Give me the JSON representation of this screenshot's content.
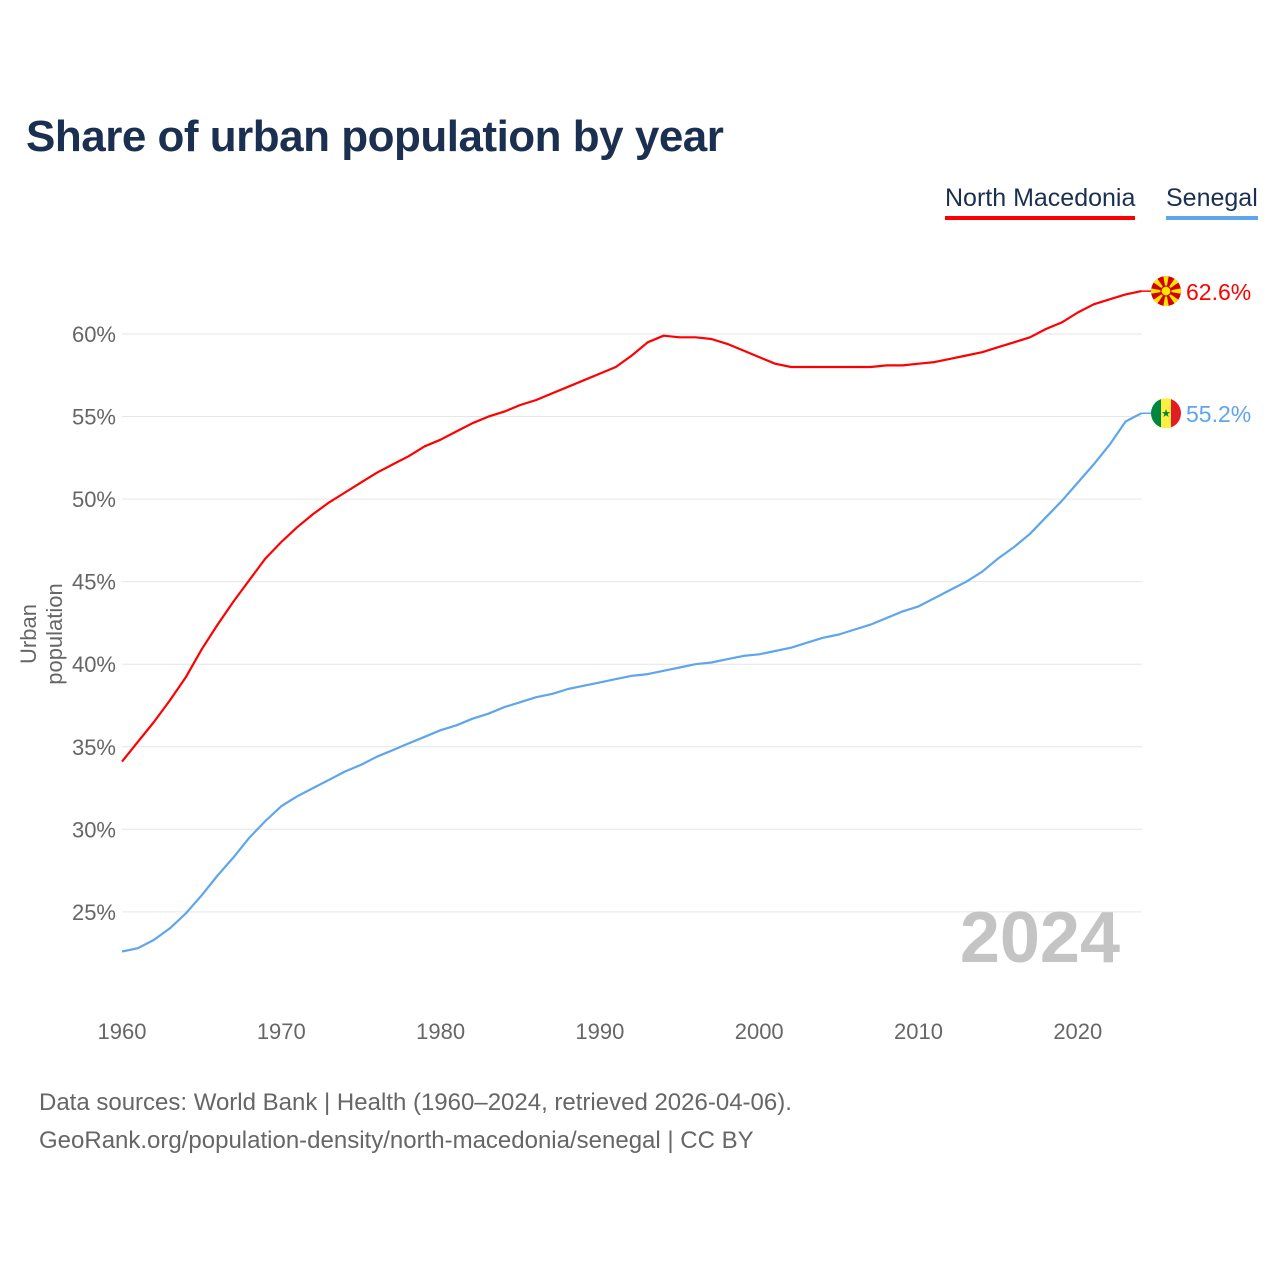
{
  "title": "Share of urban population by year",
  "legend": [
    {
      "name": "North Macedonia",
      "color": "#ff0000"
    },
    {
      "name": "Senegal",
      "color": "#5fa5ec"
    }
  ],
  "footer": {
    "line1": "Data sources: World Bank | Health (1960–2024, retrieved 2026-04-06).",
    "line2": "GeoRank.org/population-density/north-macedonia/senegal | CC BY"
  },
  "chart_data": {
    "type": "line",
    "title": "Share of urban population by year",
    "xlabel": "",
    "ylabel": "Urban population",
    "year_watermark": "2024",
    "x_start": 1960,
    "x_end": 2024,
    "xticks": [
      1960,
      1970,
      1980,
      1990,
      2000,
      2010,
      2020
    ],
    "yticks": [
      25,
      30,
      35,
      40,
      45,
      50,
      55,
      60
    ],
    "ytick_labels": [
      "25%",
      "30%",
      "35%",
      "40%",
      "45%",
      "50%",
      "55%",
      "60%"
    ],
    "grid": true,
    "legend_position": "top-right",
    "series": [
      {
        "name": "North Macedonia",
        "color": "#ff0000",
        "end_label": "62.6%",
        "flag": "north-macedonia-flag",
        "values": [
          34.1,
          35.3,
          36.5,
          37.8,
          39.2,
          40.9,
          42.4,
          43.8,
          45.1,
          46.4,
          47.4,
          48.3,
          49.1,
          49.8,
          50.4,
          51.0,
          51.6,
          52.1,
          52.6,
          53.2,
          53.6,
          54.1,
          54.6,
          55.0,
          55.3,
          55.7,
          56.0,
          56.4,
          56.8,
          57.2,
          57.6,
          58.0,
          58.7,
          59.5,
          59.9,
          59.8,
          59.8,
          59.7,
          59.4,
          59.0,
          58.6,
          58.2,
          58.0,
          58.0,
          58.0,
          58.0,
          58.0,
          58.0,
          58.1,
          58.1,
          58.2,
          58.3,
          58.5,
          58.7,
          58.9,
          59.2,
          59.5,
          59.8,
          60.3,
          60.7,
          61.3,
          61.8,
          62.1,
          62.4,
          62.6
        ]
      },
      {
        "name": "Senegal",
        "color": "#5fa5ec",
        "end_label": "55.2%",
        "flag": "senegal-flag",
        "values": [
          22.6,
          22.8,
          23.3,
          24.0,
          24.9,
          26.0,
          27.2,
          28.3,
          29.5,
          30.5,
          31.4,
          32.0,
          32.5,
          33.0,
          33.5,
          33.9,
          34.4,
          34.8,
          35.2,
          35.6,
          36.0,
          36.3,
          36.7,
          37.0,
          37.4,
          37.7,
          38.0,
          38.2,
          38.5,
          38.7,
          38.9,
          39.1,
          39.3,
          39.4,
          39.6,
          39.8,
          40.0,
          40.1,
          40.3,
          40.5,
          40.6,
          40.8,
          41.0,
          41.3,
          41.6,
          41.8,
          42.1,
          42.4,
          42.8,
          43.2,
          43.5,
          44.0,
          44.5,
          45.0,
          45.6,
          46.4,
          47.1,
          47.9,
          48.9,
          49.9,
          51.0,
          52.1,
          53.3,
          54.7,
          55.2
        ]
      }
    ]
  }
}
